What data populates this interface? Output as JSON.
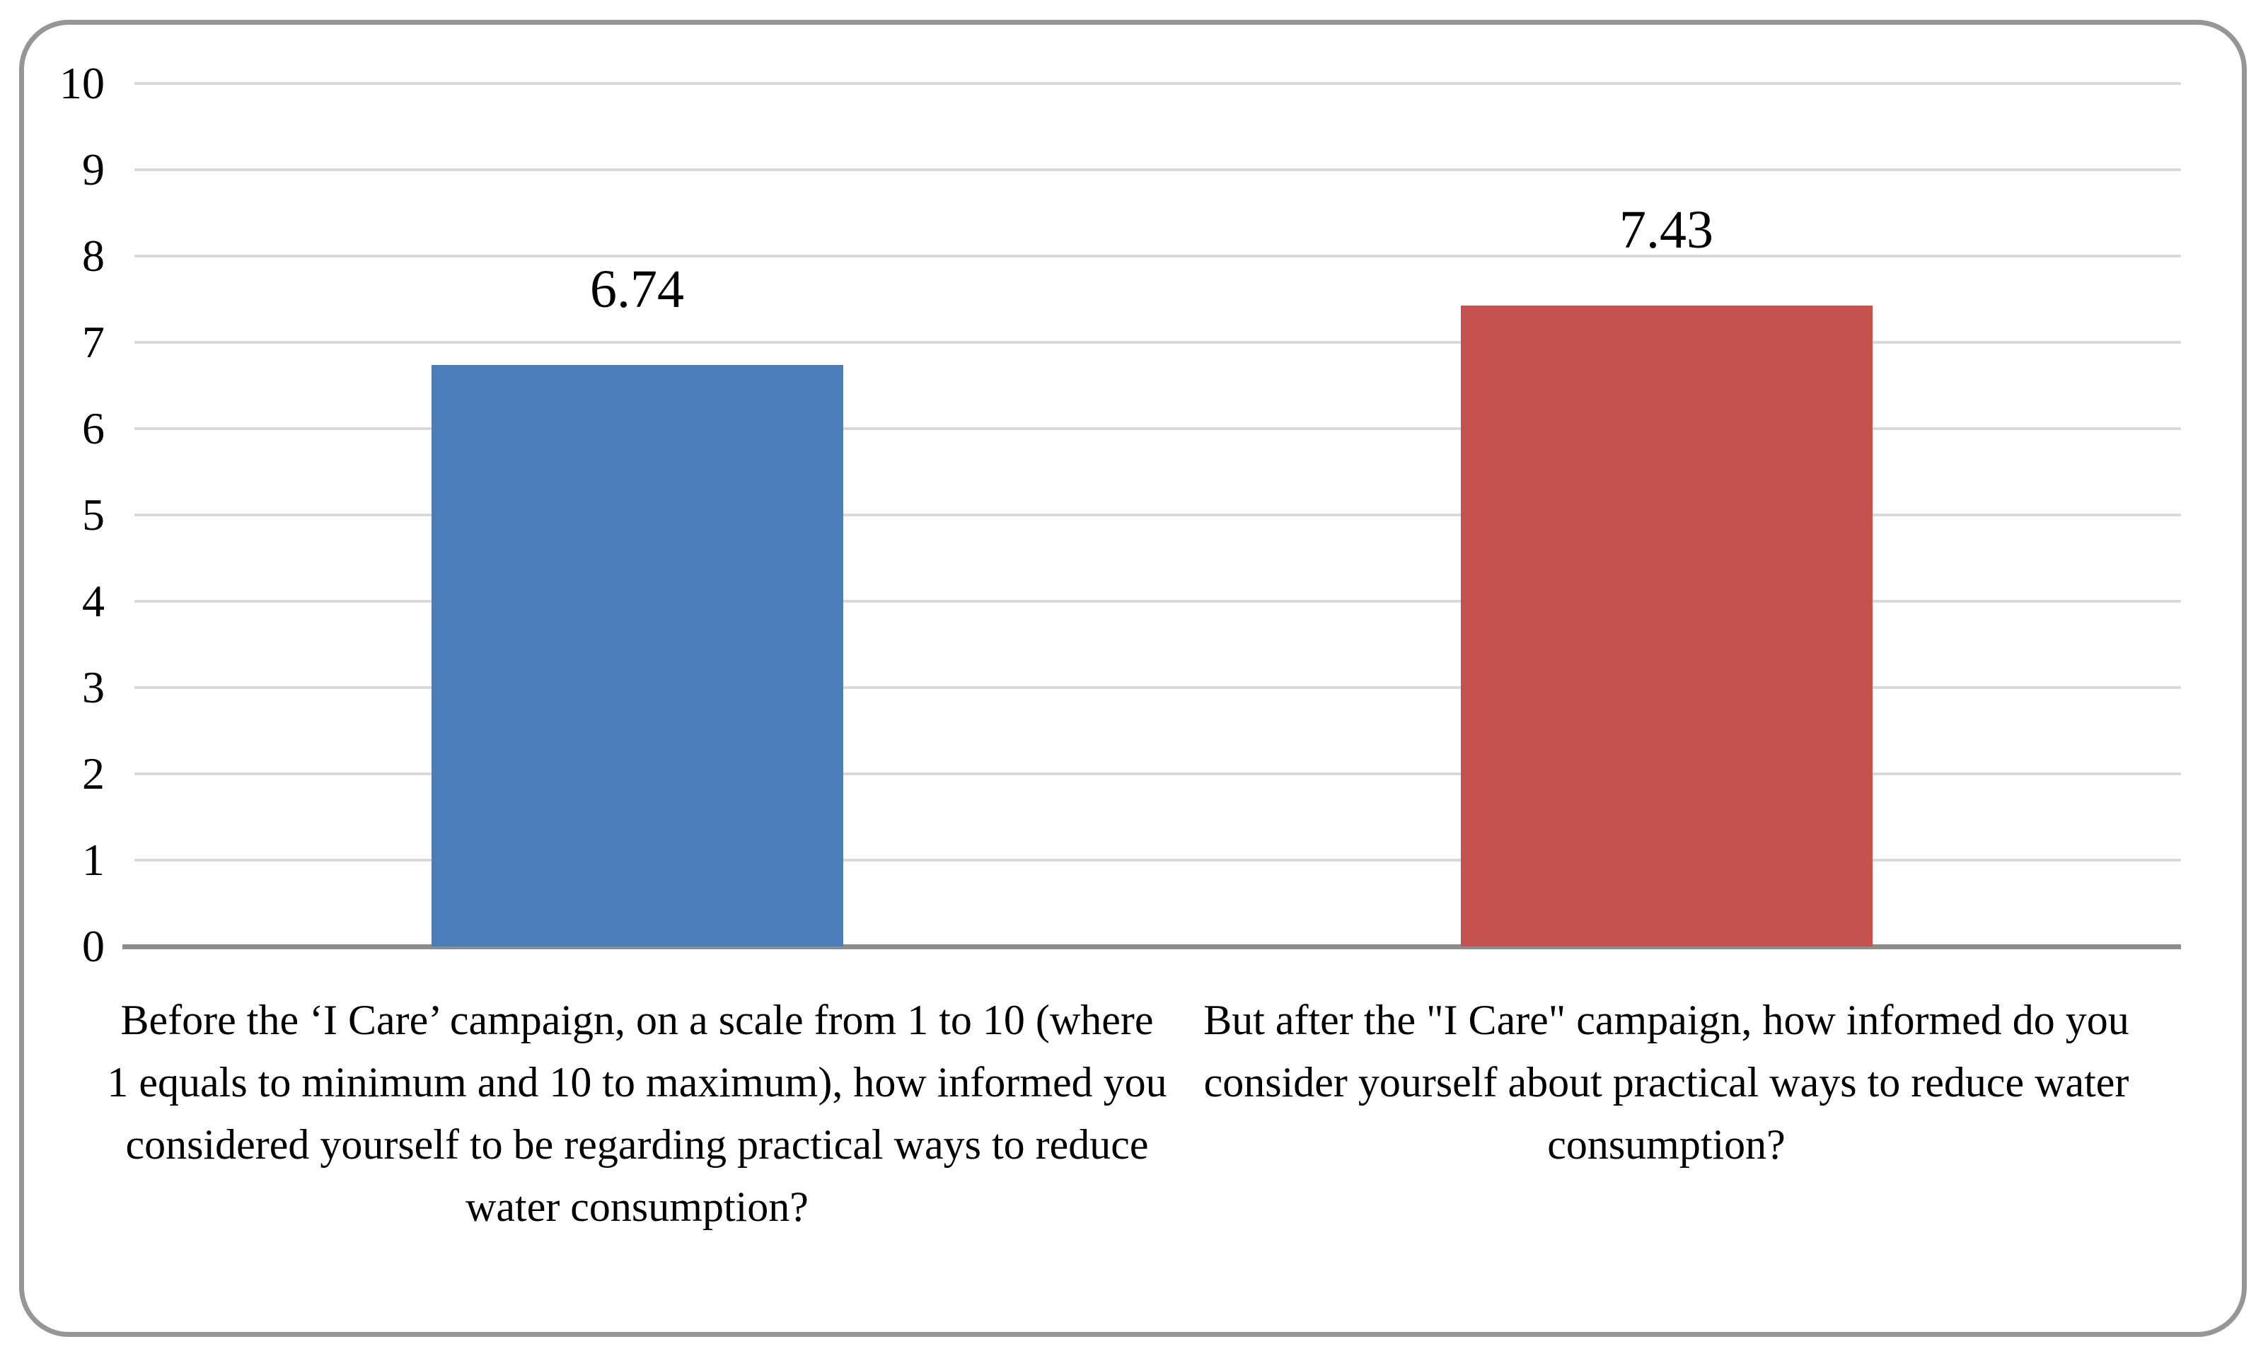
{
  "chart_data": {
    "type": "bar",
    "title": "",
    "xlabel": "",
    "ylabel": "",
    "categories": [
      "Before the ‘I Care’ campaign, on a scale from 1 to 10 (where 1 equals to minimum and 10 to maximum), how informed you considered yourself to be regarding practical ways to reduce water consumption?",
      "But after the \"I Care\" campaign, how informed do you consider yourself about practical ways to reduce water consumption?"
    ],
    "values": [
      6.74,
      7.43
    ],
    "data_labels": [
      "6.74",
      "7.43"
    ],
    "bar_colors": [
      "#4B7DBA",
      "#C5514E"
    ],
    "ylim": [
      0,
      10
    ],
    "y_ticks": [
      0,
      1,
      2,
      3,
      4,
      5,
      6,
      7,
      8,
      9,
      10
    ],
    "grid": true,
    "legend": "none"
  },
  "colors": {
    "gridline": "#D9D9D9",
    "axis_line": "#8C8C8C",
    "frame_border": "#969696",
    "text": "#000000",
    "background": "#FFFFFF"
  }
}
